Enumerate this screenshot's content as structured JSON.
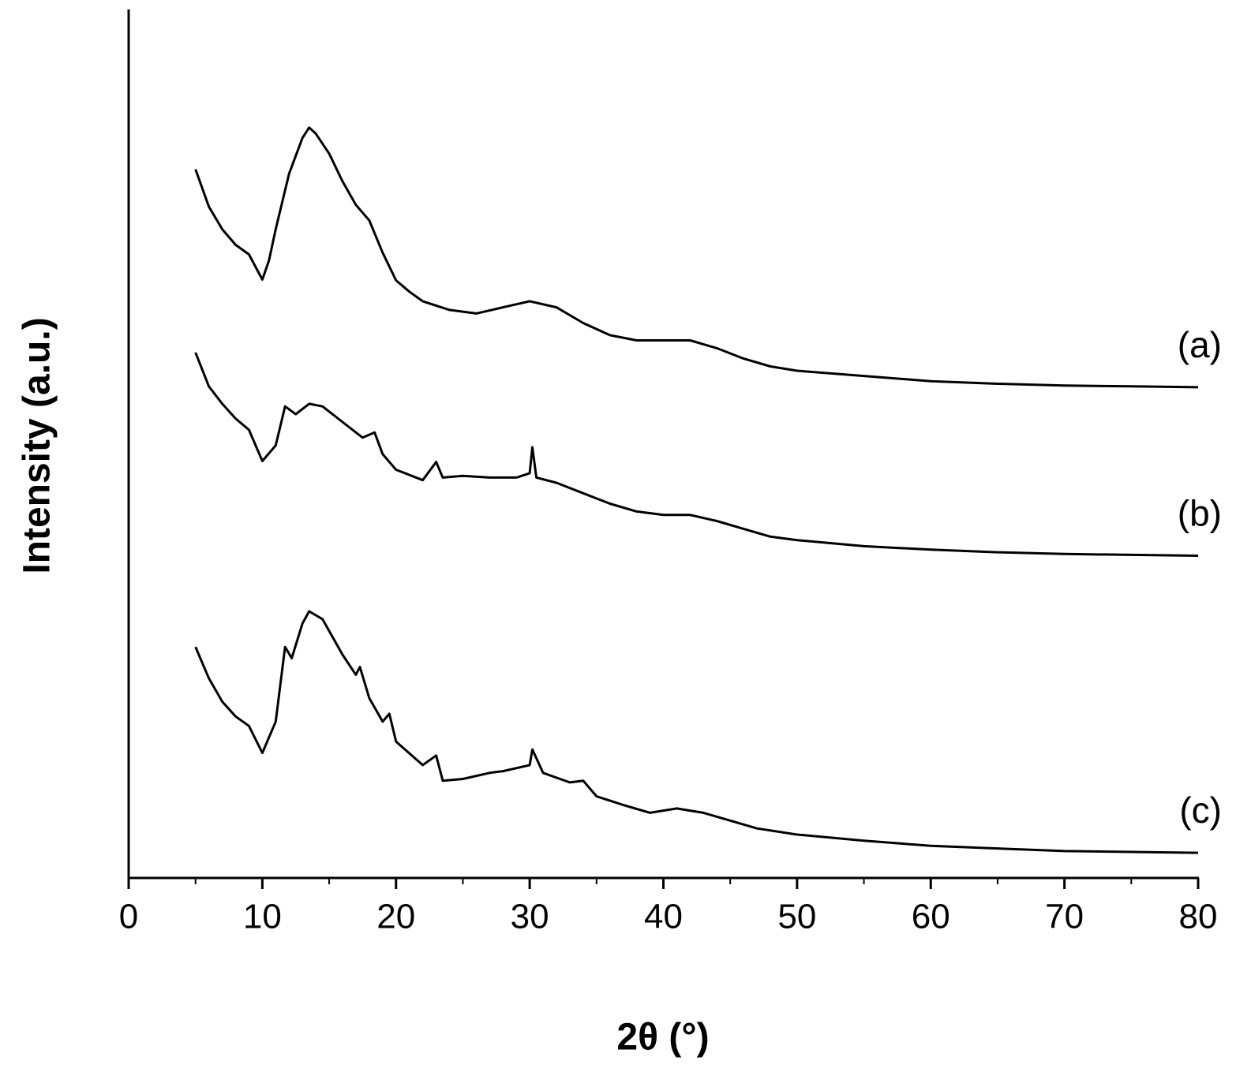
{
  "chart_data": {
    "type": "line",
    "xlabel": "2θ (°)",
    "ylabel": "Intensity (a.u.)",
    "xlim": [
      0,
      80
    ],
    "xticks": [
      0,
      10,
      20,
      30,
      40,
      50,
      60,
      70,
      80
    ],
    "xminorticks": [
      5,
      15,
      25,
      35,
      45,
      55,
      65,
      75
    ],
    "ylim": [
      0,
      100
    ],
    "series": [
      {
        "name": "(a)",
        "color": "#000000",
        "x": [
          5,
          6,
          7,
          8,
          9,
          10,
          10.5,
          11,
          12,
          13,
          13.5,
          14,
          15,
          16,
          17,
          18,
          19,
          20,
          21,
          22,
          24,
          26,
          28,
          30,
          32,
          34,
          36,
          38,
          40,
          42,
          44,
          46,
          48,
          50,
          55,
          60,
          65,
          70,
          75,
          80
        ],
        "values": [
          81.6,
          77.3,
          74.7,
          72.9,
          71.8,
          68.9,
          71.1,
          74.7,
          81.1,
          85.2,
          86.4,
          85.7,
          83.4,
          80.2,
          77.5,
          75.7,
          72.0,
          68.8,
          67.5,
          66.4,
          65.4,
          65.0,
          65.7,
          66.4,
          65.7,
          63.9,
          62.5,
          61.9,
          61.9,
          61.9,
          61.0,
          59.8,
          58.9,
          58.4,
          57.8,
          57.2,
          56.9,
          56.7,
          56.6,
          56.5
        ]
      },
      {
        "name": "(b)",
        "color": "#000000",
        "x": [
          5,
          6,
          7,
          8,
          9,
          10,
          11,
          11.7,
          12.5,
          13.5,
          14.5,
          16,
          17.5,
          18.4,
          19,
          20,
          22,
          23,
          23.5,
          25,
          27,
          29,
          30,
          30.2,
          30.5,
          32,
          34,
          36,
          38,
          40,
          42,
          44,
          46,
          48,
          50,
          55,
          60,
          65,
          70,
          75,
          80
        ],
        "values": [
          60.5,
          56.6,
          54.6,
          52.9,
          51.6,
          48.0,
          49.8,
          54.3,
          53.4,
          54.6,
          54.3,
          52.5,
          50.7,
          51.3,
          48.8,
          47.0,
          45.8,
          47.9,
          46.1,
          46.3,
          46.1,
          46.1,
          46.6,
          49.6,
          46.1,
          45.5,
          44.3,
          43.1,
          42.2,
          41.8,
          41.8,
          41.1,
          40.2,
          39.3,
          38.9,
          38.2,
          37.8,
          37.5,
          37.3,
          37.2,
          37.1
        ]
      },
      {
        "name": "(c)",
        "color": "#000000",
        "x": [
          5,
          6,
          7,
          8,
          9,
          10,
          11,
          11.7,
          12.2,
          13,
          13.5,
          14.5,
          16,
          17,
          17.3,
          18,
          19,
          19.5,
          20,
          22,
          23,
          23.5,
          25,
          27,
          28,
          30,
          30.2,
          31,
          33,
          34,
          35,
          37,
          39,
          41,
          43,
          45,
          47,
          50,
          55,
          60,
          65,
          70,
          75,
          80
        ],
        "values": [
          26.6,
          23.0,
          20.3,
          18.6,
          17.5,
          14.4,
          18.0,
          26.6,
          25.3,
          29.3,
          30.7,
          29.8,
          25.7,
          23.4,
          24.3,
          20.7,
          18.0,
          18.9,
          15.7,
          13.0,
          14.1,
          11.2,
          11.4,
          12.1,
          12.3,
          13.0,
          14.8,
          12.1,
          11.0,
          11.2,
          9.4,
          8.4,
          7.5,
          8.0,
          7.5,
          6.6,
          5.7,
          5.0,
          4.3,
          3.7,
          3.4,
          3.1,
          3.0,
          2.9
        ]
      }
    ]
  }
}
